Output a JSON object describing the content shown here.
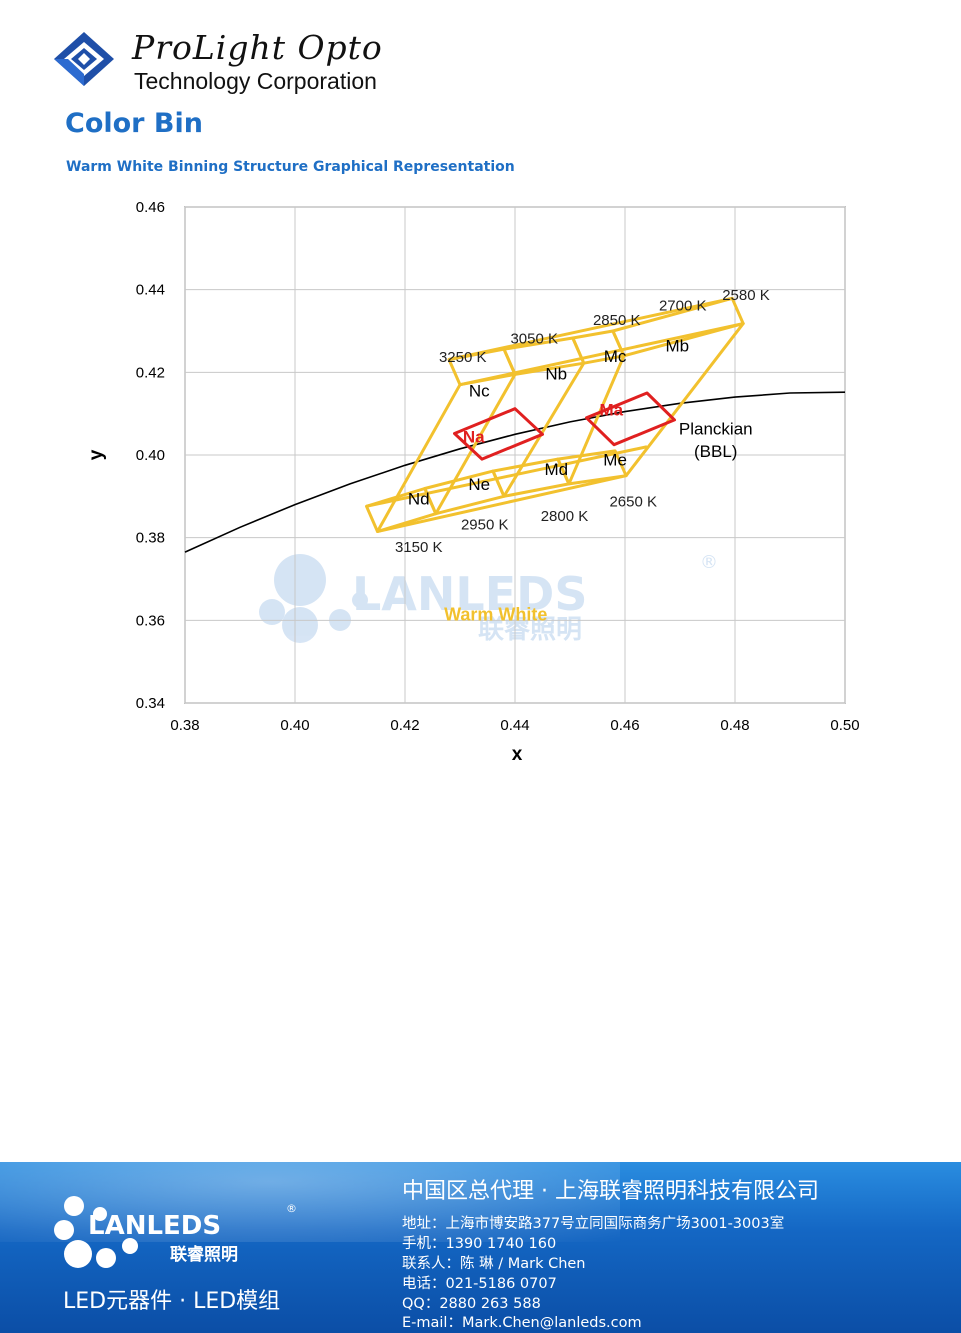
{
  "header": {
    "company_name": "ProLight Opto",
    "company_sub": "Technology Corporation",
    "section_title": "Color Bin",
    "section_subtitle": "Warm White Binning Structure Graphical Representation"
  },
  "colors": {
    "accent_blue": "#1f6fc5",
    "bin_outline": "#f2c12e",
    "center_bin": "#e02020",
    "planckian": "#000000",
    "grid": "#c8c8c8"
  },
  "chart_data": {
    "type": "scatter",
    "xlabel": "x",
    "ylabel": "y",
    "xlim": [
      0.38,
      0.5
    ],
    "ylim": [
      0.34,
      0.46
    ],
    "xticks": [
      "0.38",
      "0.40",
      "0.42",
      "0.44",
      "0.46",
      "0.48",
      "0.50"
    ],
    "yticks": [
      "0.34",
      "0.36",
      "0.38",
      "0.40",
      "0.42",
      "0.44",
      "0.46"
    ],
    "grid": true,
    "planckian_label": [
      "Planckian",
      "(BBL)"
    ],
    "planckian_locus": [
      [
        0.38,
        0.3765
      ],
      [
        0.39,
        0.3825
      ],
      [
        0.4,
        0.388
      ],
      [
        0.41,
        0.393
      ],
      [
        0.42,
        0.3975
      ],
      [
        0.43,
        0.4015
      ],
      [
        0.44,
        0.405
      ],
      [
        0.45,
        0.408
      ],
      [
        0.46,
        0.4105
      ],
      [
        0.47,
        0.4125
      ],
      [
        0.48,
        0.414
      ],
      [
        0.49,
        0.415
      ],
      [
        0.5,
        0.4152
      ]
    ],
    "bins": [
      {
        "name": "Nd",
        "polygon": [
          [
            0.415,
            0.3815
          ],
          [
            0.4256,
            0.3858
          ],
          [
            0.4236,
            0.3919
          ],
          [
            0.413,
            0.3876
          ]
        ]
      },
      {
        "name": "Ne",
        "polygon": [
          [
            0.4256,
            0.3858
          ],
          [
            0.438,
            0.39
          ],
          [
            0.436,
            0.3961
          ],
          [
            0.4236,
            0.3919
          ]
        ]
      },
      {
        "name": "Md",
        "polygon": [
          [
            0.438,
            0.39
          ],
          [
            0.4498,
            0.393
          ],
          [
            0.4478,
            0.399
          ],
          [
            0.436,
            0.3961
          ]
        ]
      },
      {
        "name": "Me",
        "polygon": [
          [
            0.4498,
            0.393
          ],
          [
            0.4602,
            0.395
          ],
          [
            0.4582,
            0.401
          ],
          [
            0.4478,
            0.399
          ]
        ]
      },
      {
        "name": "Nc",
        "polygon": [
          [
            0.43,
            0.417
          ],
          [
            0.44,
            0.4195
          ],
          [
            0.438,
            0.4256
          ],
          [
            0.428,
            0.4231
          ]
        ]
      },
      {
        "name": "Nb",
        "polygon": [
          [
            0.44,
            0.4195
          ],
          [
            0.4525,
            0.4222
          ],
          [
            0.4505,
            0.4283
          ],
          [
            0.438,
            0.4256
          ]
        ]
      },
      {
        "name": "Mc",
        "polygon": [
          [
            0.4525,
            0.4222
          ],
          [
            0.4598,
            0.424
          ],
          [
            0.4578,
            0.43
          ],
          [
            0.4505,
            0.4283
          ]
        ]
      },
      {
        "name": "Mb",
        "polygon": [
          [
            0.4598,
            0.424
          ],
          [
            0.4815,
            0.4318
          ],
          [
            0.4795,
            0.4379
          ],
          [
            0.4578,
            0.43
          ]
        ]
      }
    ],
    "bin_labels": [
      {
        "text": "Nc",
        "x": 0.4335,
        "y": 0.4142
      },
      {
        "text": "Nb",
        "x": 0.4475,
        "y": 0.4183
      },
      {
        "text": "Mc",
        "x": 0.4582,
        "y": 0.4225
      },
      {
        "text": "Mb",
        "x": 0.4695,
        "y": 0.425
      },
      {
        "text": "Nd",
        "x": 0.4225,
        "y": 0.388
      },
      {
        "text": "Ne",
        "x": 0.4335,
        "y": 0.3915
      },
      {
        "text": "Md",
        "x": 0.4475,
        "y": 0.3952
      },
      {
        "text": "Me",
        "x": 0.4582,
        "y": 0.3975
      }
    ],
    "center_bins": [
      {
        "name": "Na",
        "polygon": [
          [
            0.434,
            0.399
          ],
          [
            0.445,
            0.405
          ],
          [
            0.44,
            0.4112
          ],
          [
            0.429,
            0.4052
          ]
        ],
        "label": {
          "text": "Na",
          "x": 0.4325,
          "y": 0.403
        }
      },
      {
        "name": "Ma",
        "polygon": [
          [
            0.458,
            0.4025
          ],
          [
            0.469,
            0.4085
          ],
          [
            0.464,
            0.415
          ],
          [
            0.453,
            0.409
          ]
        ],
        "label": {
          "text": "Ma",
          "x": 0.4575,
          "y": 0.4095
        }
      }
    ],
    "outer_boundary": [
      [
        0.415,
        0.3815
      ],
      [
        0.4602,
        0.395
      ],
      [
        0.4815,
        0.4318
      ],
      [
        0.43,
        0.417
      ]
    ],
    "divider_lines": [
      [
        [
          0.4256,
          0.3858
        ],
        [
          0.44,
          0.4195
        ]
      ],
      [
        [
          0.438,
          0.39
        ],
        [
          0.4525,
          0.4222
        ]
      ],
      [
        [
          0.4498,
          0.393
        ],
        [
          0.4598,
          0.424
        ]
      ],
      [
        [
          0.413,
          0.3876
        ],
        [
          0.464,
          0.402
        ]
      ],
      [
        [
          0.428,
          0.4231
        ],
        [
          0.4795,
          0.4379
        ]
      ]
    ],
    "cct_labels": [
      {
        "text": "3250 K",
        "x": 0.4305,
        "y": 0.4225
      },
      {
        "text": "3050 K",
        "x": 0.4435,
        "y": 0.427
      },
      {
        "text": "2850 K",
        "x": 0.4585,
        "y": 0.4315
      },
      {
        "text": "2700 K",
        "x": 0.4705,
        "y": 0.435
      },
      {
        "text": "2580 K",
        "x": 0.482,
        "y": 0.4375
      },
      {
        "text": "3150 K",
        "x": 0.4225,
        "y": 0.3765
      },
      {
        "text": "2950 K",
        "x": 0.4345,
        "y": 0.382
      },
      {
        "text": "2800 K",
        "x": 0.449,
        "y": 0.384
      },
      {
        "text": "2650 K",
        "x": 0.4615,
        "y": 0.3875
      }
    ],
    "region_label": {
      "text": "Warm White",
      "x": 0.4365,
      "y": 0.36
    }
  },
  "watermark": {
    "brand": "LANLEDS",
    "brand_cn": "联睿照明",
    "registered": "®"
  },
  "footer": {
    "brand": "LANLEDS",
    "brand_cn": "联睿照明",
    "registered": "®",
    "tagline": "LED元器件 · LED模组",
    "heading": "中国区总代理 · 上海联睿照明科技有限公司",
    "address": "地址：上海市博安路377号立同国际商务广场3001-3003室",
    "mobile": "手机：1390 1740 160",
    "contact": "联系人：陈 琳 / Mark Chen",
    "phone": "电话：021-5186 0707",
    "qq": "QQ：2880 263 588",
    "email": "E-mail：Mark.Chen@lanleds.com"
  }
}
